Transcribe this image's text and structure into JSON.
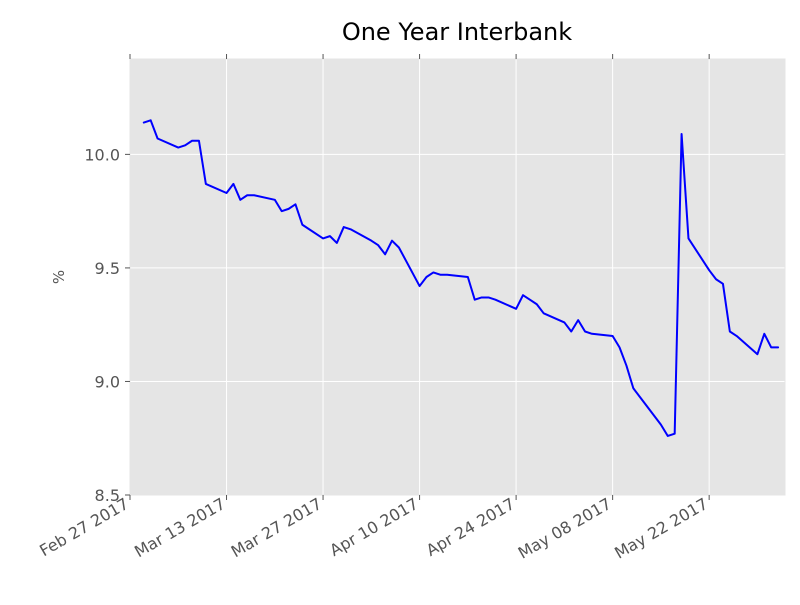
{
  "chart_data": {
    "type": "line",
    "title": "One Year Interbank",
    "xlabel": "",
    "ylabel": "%",
    "ylim": [
      8.5,
      10.42
    ],
    "xlim": [
      "2017-02-27",
      "2017-06-02"
    ],
    "grid": true,
    "background": "#e5e5e5",
    "line_color": "#0000ff",
    "y_ticks": [
      8.5,
      9.0,
      9.5,
      10.0
    ],
    "y_tick_labels": [
      "8.5",
      "9.0",
      "9.5",
      "10.0"
    ],
    "x_ticks": [
      "2017-02-27",
      "2017-03-13",
      "2017-03-27",
      "2017-04-10",
      "2017-04-24",
      "2017-05-08",
      "2017-05-22"
    ],
    "x_tick_labels": [
      "Feb 27 2017",
      "Mar 13 2017",
      "Mar 27 2017",
      "Apr 10 2017",
      "Apr 24 2017",
      "May 08 2017",
      "May 22 2017"
    ],
    "series": [
      {
        "x": [
          "2017-03-01",
          "2017-03-02",
          "2017-03-03",
          "2017-03-06",
          "2017-03-07",
          "2017-03-08",
          "2017-03-09",
          "2017-03-10",
          "2017-03-13",
          "2017-03-14",
          "2017-03-15",
          "2017-03-16",
          "2017-03-17",
          "2017-03-20",
          "2017-03-21",
          "2017-03-22",
          "2017-03-23",
          "2017-03-24",
          "2017-03-27",
          "2017-03-28",
          "2017-03-29",
          "2017-03-30",
          "2017-03-31",
          "2017-04-03",
          "2017-04-04",
          "2017-04-05",
          "2017-04-06",
          "2017-04-07",
          "2017-04-10",
          "2017-04-11",
          "2017-04-12",
          "2017-04-13",
          "2017-04-14",
          "2017-04-17",
          "2017-04-18",
          "2017-04-19",
          "2017-04-20",
          "2017-04-21",
          "2017-04-24",
          "2017-04-25",
          "2017-04-26",
          "2017-04-27",
          "2017-04-28",
          "2017-05-01",
          "2017-05-02",
          "2017-05-03",
          "2017-05-04",
          "2017-05-05",
          "2017-05-08",
          "2017-05-09",
          "2017-05-10",
          "2017-05-11",
          "2017-05-12",
          "2017-05-15",
          "2017-05-16",
          "2017-05-17",
          "2017-05-18",
          "2017-05-19",
          "2017-05-22",
          "2017-05-23",
          "2017-05-24",
          "2017-05-25",
          "2017-05-26",
          "2017-05-29",
          "2017-05-30",
          "2017-05-31",
          "2017-06-01"
        ],
        "values": [
          10.14,
          10.15,
          10.07,
          10.03,
          10.04,
          10.06,
          10.06,
          9.87,
          9.83,
          9.87,
          9.8,
          9.82,
          9.82,
          9.8,
          9.75,
          9.76,
          9.78,
          9.69,
          9.63,
          9.64,
          9.61,
          9.68,
          9.67,
          9.62,
          9.6,
          9.56,
          9.62,
          9.59,
          9.42,
          9.46,
          9.48,
          9.47,
          9.47,
          9.46,
          9.36,
          9.37,
          9.37,
          9.36,
          9.32,
          9.38,
          9.36,
          9.34,
          9.3,
          9.26,
          9.22,
          9.27,
          9.22,
          9.21,
          9.2,
          9.15,
          9.07,
          8.97,
          8.93,
          8.81,
          8.76,
          8.77,
          10.09,
          9.63,
          9.49,
          9.45,
          9.43,
          9.22,
          9.2,
          9.12,
          9.21,
          9.15,
          9.15
        ]
      }
    ]
  }
}
